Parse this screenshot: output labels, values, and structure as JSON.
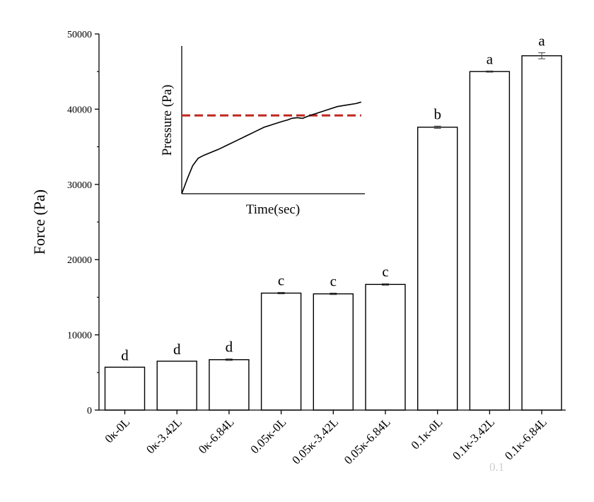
{
  "chart_data": {
    "type": "bar",
    "ylabel": "Force (Pa)",
    "ylim": [
      0,
      50000
    ],
    "yticks": [
      0,
      10000,
      20000,
      30000,
      40000,
      50000
    ],
    "categories": [
      "0κ-0L",
      "0κ-3.42L",
      "0κ-6.84L",
      "0.05κ-0L",
      "0.05κ-3.42L",
      "0.05κ-6.84L",
      "0.1κ-0L",
      "0.1κ-3.42L",
      "0.1κ-6.84L"
    ],
    "values": [
      5700,
      6500,
      6700,
      15550,
      15450,
      16700,
      37600,
      45000,
      47100
    ],
    "errors": [
      0,
      0,
      100,
      100,
      100,
      100,
      150,
      80,
      400
    ],
    "significance": [
      "d",
      "d",
      "d",
      "c",
      "c",
      "c",
      "b",
      "a",
      "a"
    ],
    "bar_fill": "#ffffff",
    "bar_stroke": "#000000",
    "inset": {
      "type": "line",
      "xlabel": "Time(sec)",
      "ylabel": "Pressure (Pa)",
      "xlim": [
        0,
        100
      ],
      "ylim": [
        0,
        100
      ],
      "curve": {
        "x": [
          0,
          3,
          6,
          9,
          12,
          16,
          20,
          25,
          30,
          35,
          40,
          45,
          50,
          55,
          58,
          60,
          63,
          66,
          70,
          75,
          80,
          85,
          90,
          95,
          98
        ],
        "y": [
          0,
          10,
          19,
          24,
          26,
          28,
          30,
          33,
          36,
          39,
          42,
          45,
          47,
          49,
          50,
          51,
          51.5,
          51,
          53,
          55,
          57,
          59,
          60,
          61,
          62
        ]
      },
      "threshold": 53,
      "threshold_color": "#c0281e"
    },
    "watermark": "0.1"
  }
}
